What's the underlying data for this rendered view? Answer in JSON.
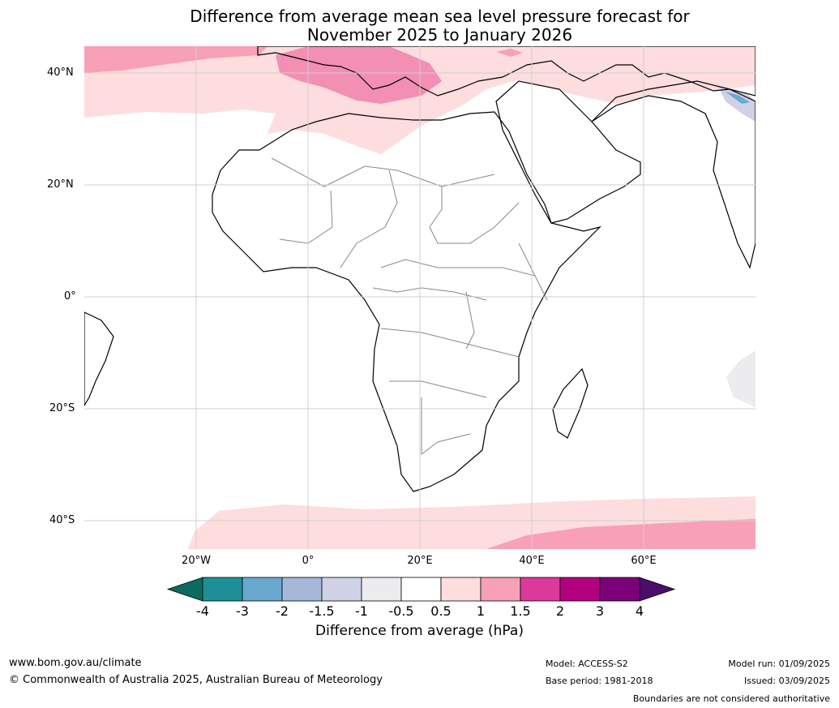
{
  "title": {
    "line1": "Difference from average mean sea level pressure forecast for",
    "line2": "November 2025 to January 2026"
  },
  "map": {
    "lat_labels": [
      "40°N",
      "20°N",
      "0°",
      "20°S",
      "40°S"
    ],
    "lon_labels": [
      "20°W",
      "0°",
      "20°E",
      "40°E",
      "60°E"
    ]
  },
  "colorbar": {
    "label": "Difference from average (hPa)",
    "ticks": [
      "-4",
      "-3",
      "-2",
      "-1.5",
      "-1",
      "-0.5",
      "0.5",
      "1",
      "1.5",
      "2",
      "3",
      "4"
    ],
    "colors": {
      "extend_low": "#0b6b5e",
      "bins": [
        "#1d9096",
        "#6aa8cf",
        "#a5b8d9",
        "#cfd1e6",
        "#ececef",
        "#ffffff",
        "#fdddde",
        "#f8a0b8",
        "#dc3a9a",
        "#b20080",
        "#7c0079"
      ],
      "extend_high": "#4a0e6a"
    }
  },
  "footer": {
    "website": "www.bom.gov.au/climate",
    "copyright": "© Commonwealth of Australia 2025, Australian Bureau of Meteorology",
    "model": "Model: ACCESS-S2",
    "base_period": "Base period: 1981-2018",
    "model_run": "Model run: 01/09/2025",
    "issued": "Issued: 03/09/2025",
    "disclaimer": "Boundaries are not considered authoritative"
  }
}
